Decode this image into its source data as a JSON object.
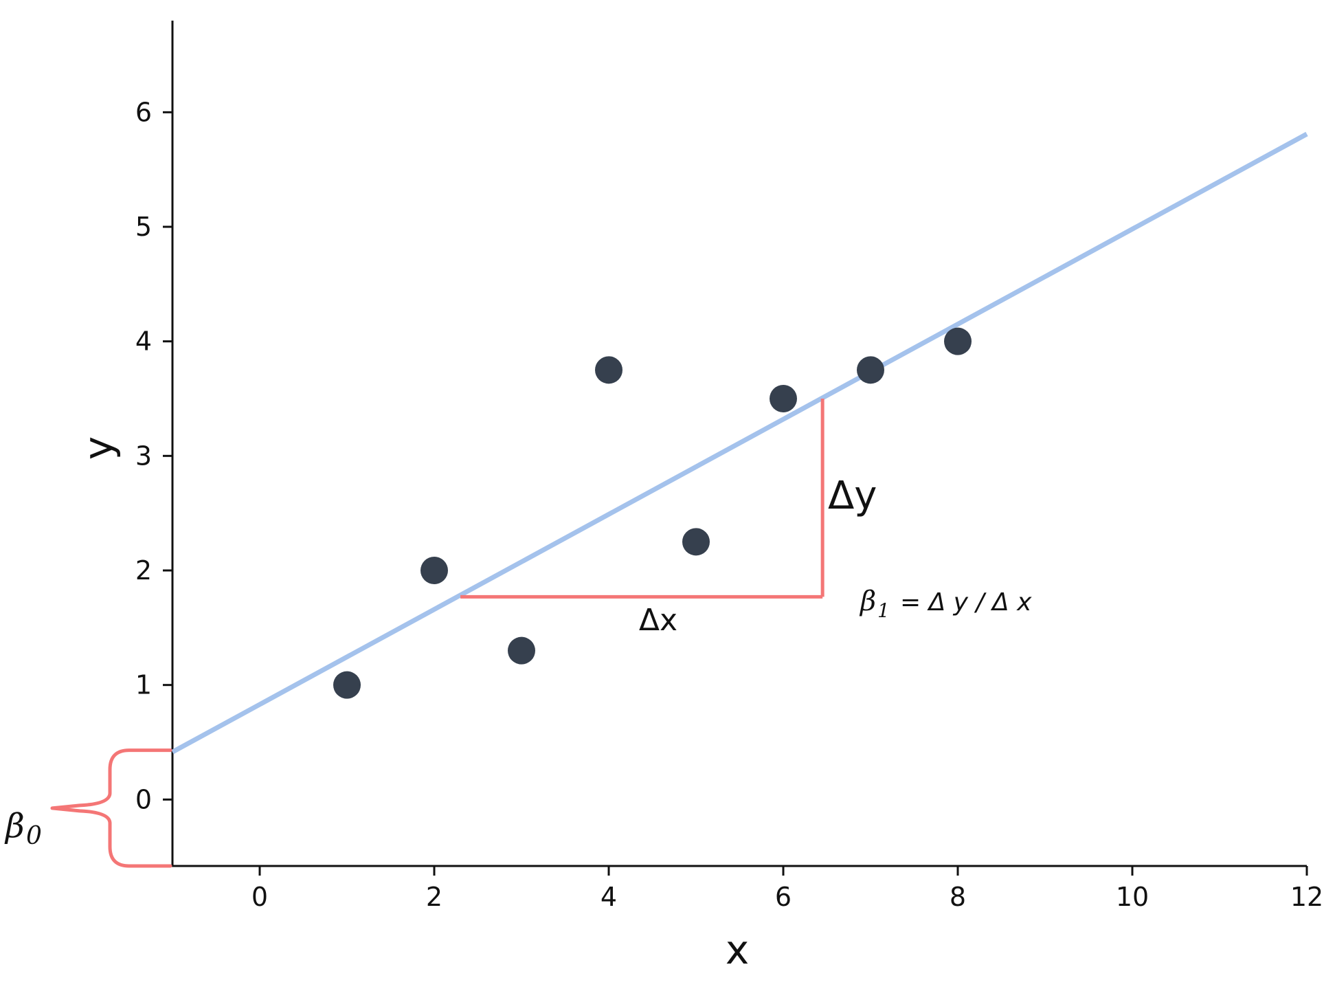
{
  "chart_data": {
    "type": "scatter",
    "xlabel": "x",
    "ylabel": "y",
    "xlim": [
      -1,
      12
    ],
    "ylim": [
      -0.58,
      6.8
    ],
    "x_ticks": [
      0,
      2,
      4,
      6,
      8,
      10,
      12
    ],
    "y_ticks": [
      0,
      1,
      2,
      3,
      4,
      5,
      6
    ],
    "grid": false,
    "points": [
      {
        "x": 1,
        "y": 1.0
      },
      {
        "x": 2,
        "y": 2.0
      },
      {
        "x": 3,
        "y": 1.3
      },
      {
        "x": 4,
        "y": 3.75
      },
      {
        "x": 5,
        "y": 2.25
      },
      {
        "x": 6,
        "y": 3.5
      },
      {
        "x": 7,
        "y": 3.75
      },
      {
        "x": 8,
        "y": 4.0
      }
    ],
    "regression_line": {
      "intercept": 0.83,
      "slope": 0.415,
      "x_start": -1,
      "x_end": 12
    },
    "slope_triangle": {
      "x_start": 2.3,
      "x_end": 6.45,
      "y_base": 1.77,
      "y_top": 3.5
    },
    "intercept_brace": {
      "y_low": -0.58,
      "y_high": 0.43
    },
    "annotations": {
      "delta_x": "Δx",
      "delta_y": "Δy",
      "beta1_symbol": "β",
      "beta1_sub": "1",
      "beta1_formula": "= Δ y / Δ x",
      "beta0_symbol": "β",
      "beta0_sub": "0"
    },
    "colors": {
      "points": "#36404e",
      "line": "#a4c2ec",
      "annotation": "#f47676",
      "axis": "#111111"
    }
  }
}
